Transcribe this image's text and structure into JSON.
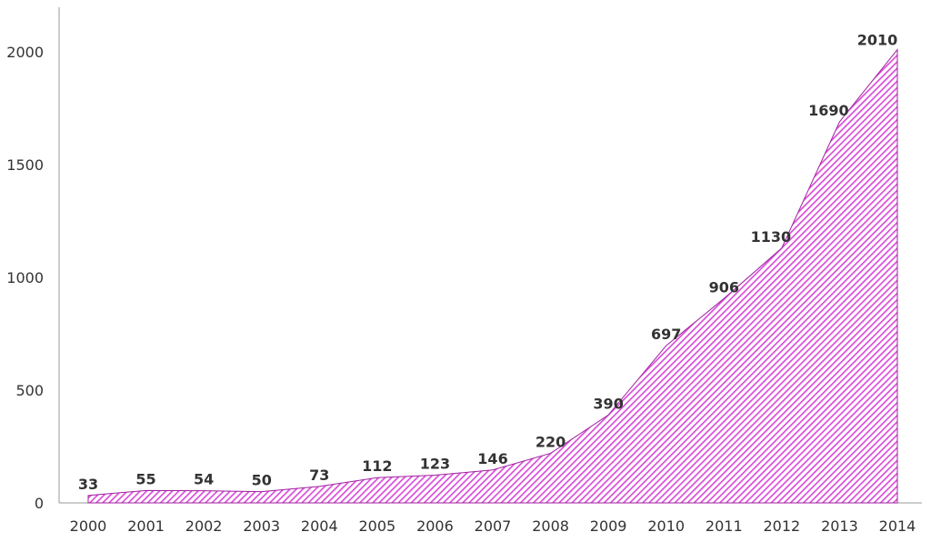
{
  "chart_data": {
    "type": "area",
    "title": "",
    "xlabel": "",
    "ylabel": "",
    "x": [
      "2000",
      "2001",
      "2002",
      "2003",
      "2004",
      "2005",
      "2006",
      "2007",
      "2008",
      "2009",
      "2010",
      "2011",
      "2012",
      "2013",
      "2014"
    ],
    "values": [
      33,
      55,
      54,
      50,
      73,
      112,
      123,
      146,
      220,
      390,
      697,
      906,
      1130,
      1690,
      2010
    ],
    "data_labels": [
      "33",
      "55",
      "54",
      "50",
      "73",
      "112",
      "123",
      "146",
      "220",
      "390",
      "697",
      "906",
      "1130",
      "1690",
      "2010"
    ],
    "y_ticks": [
      0,
      500,
      1000,
      1500,
      2000
    ],
    "ylim": [
      0,
      2200
    ],
    "grid": false,
    "legend": "none",
    "fill_pattern": "diagonal-hatch",
    "fill_color": "#d94fd9",
    "stroke_color": "#a020a0"
  }
}
